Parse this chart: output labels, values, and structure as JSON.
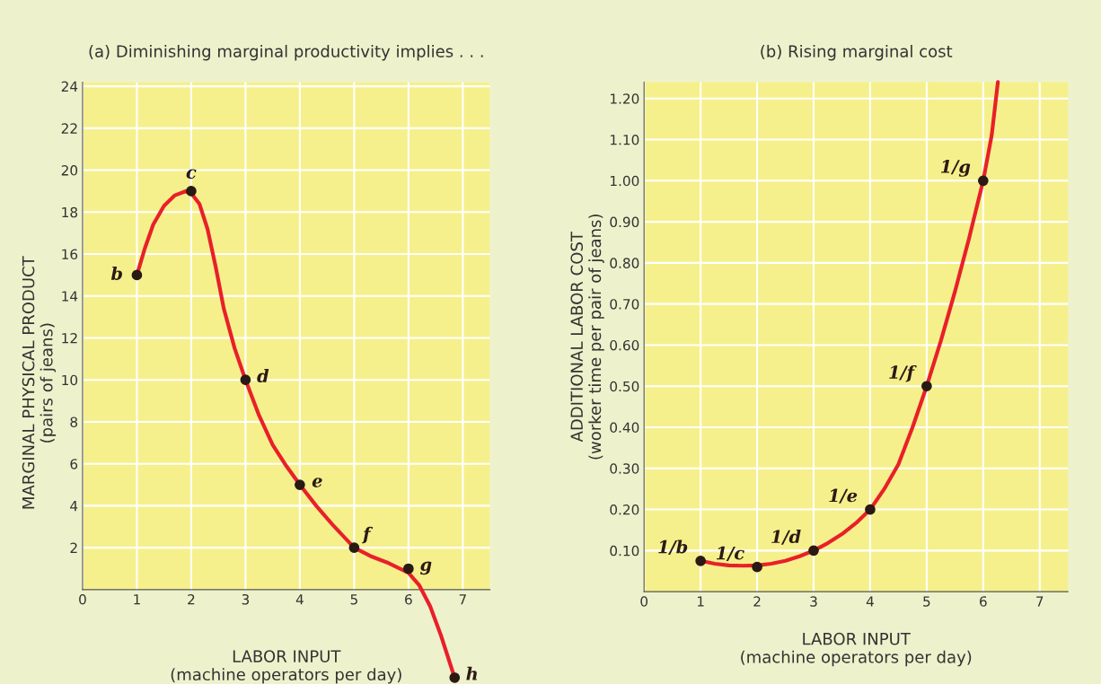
{
  "chart_data": [
    {
      "type": "line",
      "title": "(a) Diminishing marginal productivity implies . . .",
      "xlabel": "LABOR INPUT\n(machine operators per day)",
      "ylabel": "MARGINAL PHYSICAL PRODUCT\n(pairs of jeans)",
      "xlim": [
        0,
        7.5
      ],
      "ylim": [
        -4.5,
        24.2
      ],
      "xticks": [
        0,
        1,
        2,
        3,
        4,
        5,
        6,
        7
      ],
      "yticks": [
        2,
        4,
        6,
        8,
        10,
        12,
        14,
        16,
        18,
        20,
        22,
        24
      ],
      "grid": true,
      "bands": [
        {
          "axis": "y",
          "from": 0,
          "to": 24.2,
          "color": "#f6f08c"
        }
      ],
      "series": [
        {
          "color": "#e8202a",
          "x": [
            1,
            1.15,
            1.3,
            1.5,
            1.7,
            1.9,
            2,
            2.15,
            2.3,
            2.45,
            2.6,
            2.8,
            3,
            3.25,
            3.5,
            3.75,
            4,
            4.3,
            4.6,
            5,
            5.3,
            5.6,
            6,
            6.2,
            6.4,
            6.6,
            6.85
          ],
          "values": [
            15,
            16.3,
            17.4,
            18.3,
            18.8,
            19,
            18.9,
            18.4,
            17.2,
            15.4,
            13.4,
            11.5,
            10,
            8.3,
            6.9,
            5.9,
            5,
            4,
            3.1,
            2,
            1.6,
            1.3,
            0.8,
            0.2,
            -0.8,
            -2.2,
            -4.2
          ]
        },
        {
          "type": "scatter",
          "color": "#2a1a14",
          "marker": "circle",
          "x": [
            1,
            2,
            3,
            4,
            5,
            6,
            6.85
          ],
          "values": [
            15,
            19,
            10,
            5,
            2,
            1,
            -4.2
          ]
        }
      ],
      "annotations": [
        {
          "text": "b",
          "x": 1,
          "y": 15
        },
        {
          "text": "c",
          "x": 2,
          "y": 19
        },
        {
          "text": "d",
          "x": 3,
          "y": 10
        },
        {
          "text": "e",
          "x": 4,
          "y": 5
        },
        {
          "text": "f",
          "x": 5,
          "y": 2
        },
        {
          "text": "g",
          "x": 6,
          "y": 1
        },
        {
          "text": "h",
          "x": 6.85,
          "y": -4.2
        }
      ]
    },
    {
      "type": "line",
      "title": "(b) Rising marginal cost",
      "xlabel": "LABOR INPUT\n(machine operators per day)",
      "ylabel": "ADDITIONAL LABOR COST\n(worker time per pair of jeans)",
      "xlim": [
        0,
        7.5
      ],
      "ylim": [
        0,
        1.24
      ],
      "xticks": [
        0,
        1,
        2,
        3,
        4,
        5,
        6,
        7
      ],
      "yticks": [
        {
          "value": 0.1,
          "label": "0.10"
        },
        {
          "value": 0.2,
          "label": "0.20"
        },
        {
          "value": 0.3,
          "label": "0.30"
        },
        {
          "value": 0.4,
          "label": "0.40"
        },
        {
          "value": 0.5,
          "label": "0.50"
        },
        {
          "value": 0.6,
          "label": "0.60"
        },
        {
          "value": 0.7,
          "label": "0.70"
        },
        {
          "value": 0.8,
          "label": "0.80"
        },
        {
          "value": 0.9,
          "label": "0.90"
        },
        {
          "value": 1.0,
          "label": "1.00"
        },
        {
          "value": 1.1,
          "label": "1.10"
        },
        {
          "value": 1.2,
          "label": "1.20"
        }
      ],
      "grid": true,
      "series": [
        {
          "color": "#e8202a",
          "x": [
            1,
            1.25,
            1.5,
            1.75,
            2,
            2.25,
            2.5,
            2.75,
            3,
            3.25,
            3.5,
            3.75,
            4,
            4.25,
            4.5,
            4.75,
            5,
            5.25,
            5.5,
            5.75,
            6,
            6.15,
            6.26
          ],
          "values": [
            0.075,
            0.068,
            0.064,
            0.063,
            0.064,
            0.068,
            0.075,
            0.086,
            0.1,
            0.118,
            0.14,
            0.167,
            0.2,
            0.25,
            0.31,
            0.4,
            0.5,
            0.61,
            0.73,
            0.86,
            1.0,
            1.11,
            1.24
          ]
        },
        {
          "type": "scatter",
          "color": "#2a1a14",
          "marker": "circle",
          "x": [
            1,
            2,
            3,
            4,
            5,
            6
          ],
          "values": [
            0.075,
            0.06,
            0.1,
            0.2,
            0.5,
            1.0
          ]
        }
      ],
      "annotations": [
        {
          "text": "1/b",
          "x": 1,
          "y": 0.075
        },
        {
          "text": "1/c",
          "x": 2,
          "y": 0.06
        },
        {
          "text": "1/d",
          "x": 3,
          "y": 0.1
        },
        {
          "text": "1/e",
          "x": 4,
          "y": 0.2
        },
        {
          "text": "1/f",
          "x": 5,
          "y": 0.5
        },
        {
          "text": "1/g",
          "x": 6,
          "y": 1.0
        }
      ]
    }
  ]
}
